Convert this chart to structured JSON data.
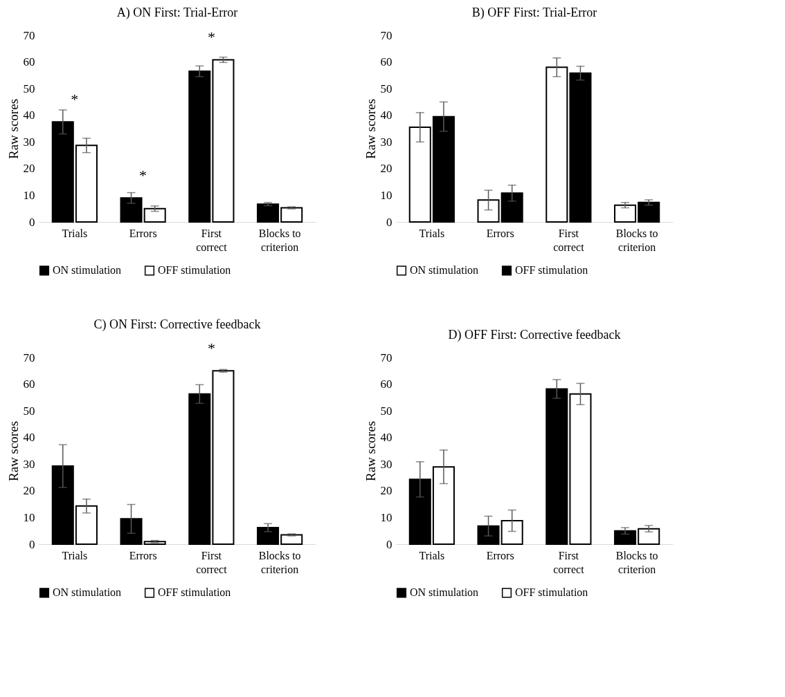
{
  "chart_data": [
    {
      "type": "bar",
      "title": "A) ON First: Trial-Error",
      "ylabel": "Raw scores",
      "categories": [
        "Trials",
        "Errors",
        "First correct",
        "Blocks to criterion"
      ],
      "ylim": [
        0,
        70
      ],
      "yticks": [
        0,
        10,
        20,
        30,
        40,
        50,
        60,
        70
      ],
      "grid": false,
      "legend": "bottom",
      "series": [
        {
          "name": "ON stimulation",
          "color": "#000000",
          "values": [
            37.5,
            9,
            56.5,
            6.7
          ],
          "errors": [
            4.5,
            2,
            2,
            0.6
          ]
        },
        {
          "name": "OFF stimulation",
          "color": "#ffffff",
          "values": [
            28.7,
            5,
            60.8,
            5.3
          ],
          "errors": [
            2.7,
            1,
            1,
            0.4
          ]
        }
      ],
      "annotations": [
        {
          "text": "*",
          "x": "Trials",
          "y": 37.5
        },
        {
          "text": "*",
          "x": "Errors",
          "y": 9
        },
        {
          "text": "*",
          "x": "First correct",
          "y": 60.8
        }
      ]
    },
    {
      "type": "bar",
      "title": "B) OFF First: Trial-Error",
      "ylabel": "Raw scores",
      "categories": [
        "Trials",
        "Errors",
        "First correct",
        "Blocks to criterion"
      ],
      "ylim": [
        0,
        70
      ],
      "yticks": [
        0,
        10,
        20,
        30,
        40,
        50,
        60,
        70
      ],
      "grid": false,
      "legend": "bottom",
      "series": [
        {
          "name": "ON stimulation",
          "color": "#ffffff",
          "values": [
            35.5,
            8.2,
            58,
            6.3
          ],
          "errors": [
            5.5,
            3.7,
            3.5,
            1
          ]
        },
        {
          "name": "OFF stimulation",
          "color": "#000000",
          "values": [
            39.5,
            10.8,
            55.8,
            7.3
          ],
          "errors": [
            5.5,
            3,
            2.6,
            1
          ]
        }
      ]
    },
    {
      "type": "bar",
      "title": "C) ON First: Corrective feedback",
      "ylabel": "Raw scores",
      "categories": [
        "Trials",
        "Errors",
        "First correct",
        "Blocks to criterion"
      ],
      "ylim": [
        0,
        70
      ],
      "yticks": [
        0,
        10,
        20,
        30,
        40,
        50,
        60,
        70
      ],
      "grid": false,
      "legend": "bottom",
      "series": [
        {
          "name": "ON stimulation",
          "color": "#000000",
          "values": [
            29.3,
            9.5,
            56.3,
            6.2
          ],
          "errors": [
            8,
            5.4,
            3.5,
            1.5
          ]
        },
        {
          "name": "OFF stimulation",
          "color": "#ffffff",
          "values": [
            14.3,
            1,
            65,
            3.5
          ],
          "errors": [
            2.6,
            0.4,
            0.5,
            0.4
          ]
        }
      ],
      "annotations": [
        {
          "text": "*",
          "x": "First correct",
          "y": 65
        }
      ]
    },
    {
      "type": "bar",
      "title": "D) OFF First: Corrective feedback",
      "ylabel": "Raw scores",
      "categories": [
        "Trials",
        "Errors",
        "First correct",
        "Blocks to criterion"
      ],
      "ylim": [
        0,
        70
      ],
      "yticks": [
        0,
        10,
        20,
        30,
        40,
        50,
        60,
        70
      ],
      "grid": false,
      "legend": "bottom",
      "series": [
        {
          "name": "ON stimulation",
          "color": "#000000",
          "values": [
            24.3,
            6.8,
            58.2,
            5
          ],
          "errors": [
            6.6,
            3.7,
            3.5,
            1.2
          ]
        },
        {
          "name": "OFF stimulation",
          "color": "#ffffff",
          "values": [
            29,
            8.8,
            56.3,
            5.8
          ],
          "errors": [
            6.3,
            4,
            4,
            1.2
          ]
        }
      ]
    }
  ]
}
